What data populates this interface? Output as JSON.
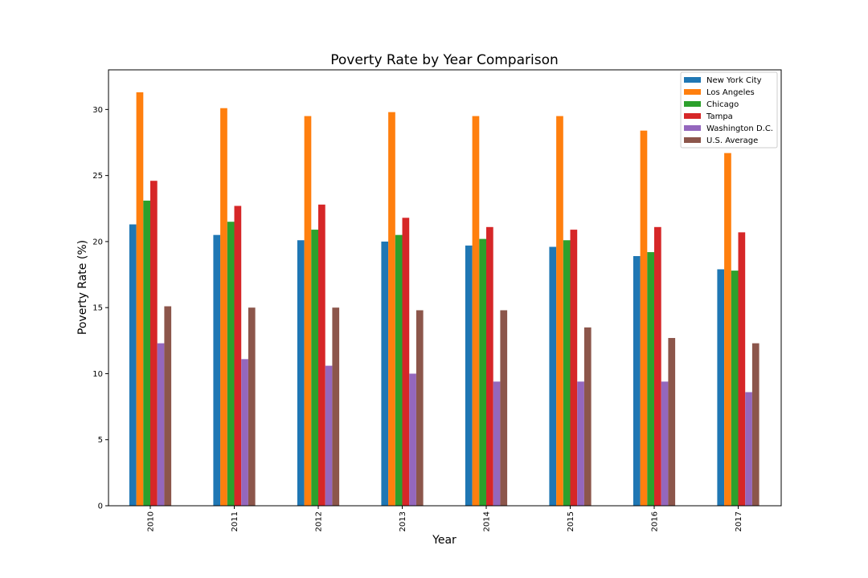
{
  "chart_data": {
    "type": "bar",
    "title": "Poverty Rate by Year Comparison",
    "xlabel": "Year",
    "ylabel": "Poverty Rate (%)",
    "categories": [
      "2010",
      "2011",
      "2012",
      "2013",
      "2014",
      "2015",
      "2016",
      "2017"
    ],
    "ylim": [
      0,
      33
    ],
    "yticks": [
      0,
      5,
      10,
      15,
      20,
      25,
      30
    ],
    "grid": false,
    "legend_position": "top-right",
    "series": [
      {
        "name": "New York City",
        "color": "#1f77b4",
        "values": [
          21.3,
          20.5,
          20.1,
          20.0,
          19.7,
          19.6,
          18.9,
          17.9
        ]
      },
      {
        "name": "Los Angeles",
        "color": "#ff7f0e",
        "values": [
          31.3,
          30.1,
          29.5,
          29.8,
          29.5,
          29.5,
          28.4,
          26.7
        ]
      },
      {
        "name": "Chicago",
        "color": "#2ca02c",
        "values": [
          23.1,
          21.5,
          20.9,
          20.5,
          20.2,
          20.1,
          19.2,
          17.8
        ]
      },
      {
        "name": "Tampa",
        "color": "#d62728",
        "values": [
          24.6,
          22.7,
          22.8,
          21.8,
          21.1,
          20.9,
          21.1,
          20.7
        ]
      },
      {
        "name": "Washington D.C.",
        "color": "#9467bd",
        "values": [
          12.3,
          11.1,
          10.6,
          10.0,
          9.4,
          9.4,
          9.4,
          8.6
        ]
      },
      {
        "name": "U.S. Average",
        "color": "#8c564b",
        "values": [
          15.1,
          15.0,
          15.0,
          14.8,
          14.8,
          13.5,
          12.7,
          12.3
        ]
      }
    ]
  }
}
